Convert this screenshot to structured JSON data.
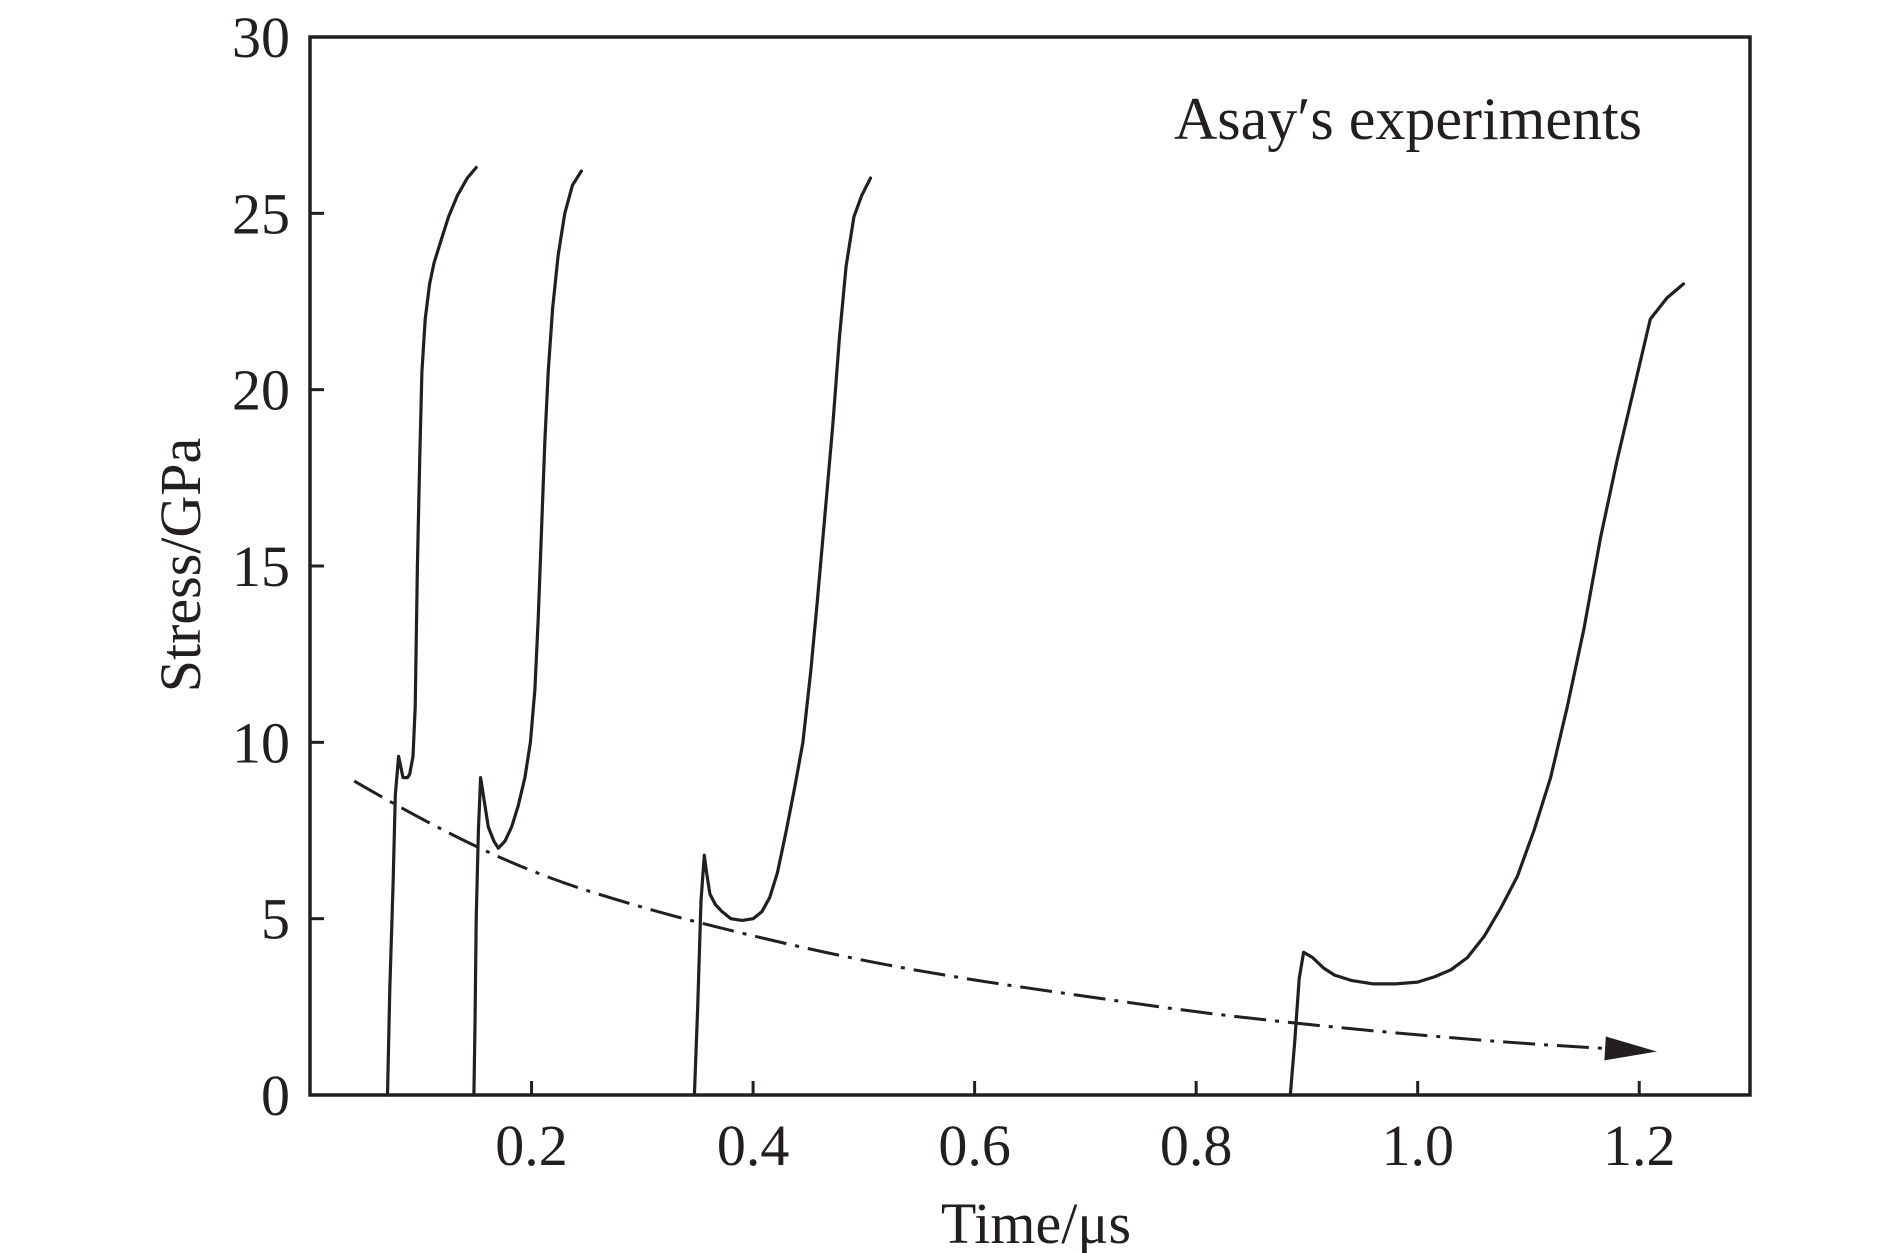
{
  "chart_data": {
    "type": "line",
    "title": "",
    "xlabel": "Time/μs",
    "ylabel": "Stress/GPa",
    "xlim": [
      0,
      1.3
    ],
    "ylim": [
      0,
      30
    ],
    "x_ticks": [
      0.2,
      0.4,
      0.6,
      0.8,
      1.0,
      1.2
    ],
    "x_tick_labels": [
      "0.2",
      "0.4",
      "0.6",
      "0.8",
      "1.0",
      "1.2"
    ],
    "y_ticks": [
      0,
      5,
      10,
      15,
      20,
      25,
      30
    ],
    "y_tick_labels": [
      "0",
      "5",
      "10",
      "15",
      "20",
      "25",
      "30"
    ],
    "grid": false,
    "annotation": "Asay′s experiments",
    "colors": {
      "line": "#231f20",
      "background": "#ffffff"
    },
    "series": [
      {
        "points": [
          [
            0.07,
            0.0
          ],
          [
            0.072,
            3.0
          ],
          [
            0.075,
            6.0
          ],
          [
            0.077,
            8.5
          ],
          [
            0.08,
            9.6
          ],
          [
            0.082,
            9.3
          ],
          [
            0.084,
            9.0
          ],
          [
            0.088,
            9.0
          ],
          [
            0.09,
            9.1
          ],
          [
            0.093,
            9.6
          ],
          [
            0.095,
            11.0
          ],
          [
            0.097,
            15.0
          ],
          [
            0.099,
            18.0
          ],
          [
            0.101,
            20.5
          ],
          [
            0.104,
            22.0
          ],
          [
            0.108,
            23.0
          ],
          [
            0.112,
            23.6
          ],
          [
            0.118,
            24.2
          ],
          [
            0.125,
            24.9
          ],
          [
            0.133,
            25.5
          ],
          [
            0.142,
            26.0
          ],
          [
            0.15,
            26.3
          ]
        ]
      },
      {
        "points": [
          [
            0.148,
            0.0
          ],
          [
            0.149,
            2.0
          ],
          [
            0.15,
            5.0
          ],
          [
            0.152,
            7.5
          ],
          [
            0.154,
            9.0
          ],
          [
            0.157,
            8.4
          ],
          [
            0.161,
            7.6
          ],
          [
            0.166,
            7.2
          ],
          [
            0.17,
            7.0
          ],
          [
            0.176,
            7.2
          ],
          [
            0.182,
            7.6
          ],
          [
            0.188,
            8.2
          ],
          [
            0.194,
            9.0
          ],
          [
            0.199,
            10.0
          ],
          [
            0.203,
            11.5
          ],
          [
            0.206,
            13.5
          ],
          [
            0.209,
            16.0
          ],
          [
            0.212,
            18.5
          ],
          [
            0.215,
            20.5
          ],
          [
            0.219,
            22.3
          ],
          [
            0.224,
            23.8
          ],
          [
            0.23,
            25.0
          ],
          [
            0.237,
            25.8
          ],
          [
            0.245,
            26.2
          ]
        ]
      },
      {
        "points": [
          [
            0.347,
            0.0
          ],
          [
            0.35,
            2.5
          ],
          [
            0.353,
            5.5
          ],
          [
            0.356,
            6.8
          ],
          [
            0.358,
            6.3
          ],
          [
            0.361,
            5.7
          ],
          [
            0.366,
            5.4
          ],
          [
            0.372,
            5.2
          ],
          [
            0.38,
            5.0
          ],
          [
            0.39,
            4.95
          ],
          [
            0.4,
            5.0
          ],
          [
            0.408,
            5.2
          ],
          [
            0.415,
            5.6
          ],
          [
            0.422,
            6.3
          ],
          [
            0.43,
            7.5
          ],
          [
            0.438,
            8.8
          ],
          [
            0.445,
            10.0
          ],
          [
            0.452,
            12.0
          ],
          [
            0.458,
            14.0
          ],
          [
            0.465,
            16.5
          ],
          [
            0.472,
            19.0
          ],
          [
            0.478,
            21.5
          ],
          [
            0.484,
            23.5
          ],
          [
            0.491,
            24.9
          ],
          [
            0.498,
            25.5
          ],
          [
            0.506,
            26.0
          ]
        ]
      },
      {
        "points": [
          [
            0.885,
            0.0
          ],
          [
            0.889,
            1.5
          ],
          [
            0.893,
            3.3
          ],
          [
            0.897,
            4.05
          ],
          [
            0.905,
            3.9
          ],
          [
            0.915,
            3.6
          ],
          [
            0.925,
            3.4
          ],
          [
            0.94,
            3.25
          ],
          [
            0.96,
            3.15
          ],
          [
            0.98,
            3.15
          ],
          [
            1.0,
            3.2
          ],
          [
            1.015,
            3.35
          ],
          [
            1.03,
            3.55
          ],
          [
            1.045,
            3.9
          ],
          [
            1.06,
            4.5
          ],
          [
            1.075,
            5.3
          ],
          [
            1.09,
            6.2
          ],
          [
            1.105,
            7.5
          ],
          [
            1.12,
            9.0
          ],
          [
            1.135,
            11.0
          ],
          [
            1.15,
            13.2
          ],
          [
            1.165,
            15.8
          ],
          [
            1.18,
            18.0
          ],
          [
            1.195,
            20.0
          ],
          [
            1.21,
            22.0
          ],
          [
            1.225,
            22.6
          ],
          [
            1.24,
            23.0
          ]
        ]
      }
    ],
    "trend": {
      "style": "dash-dot",
      "arrow": "end",
      "points": [
        [
          0.04,
          8.9
        ],
        [
          0.1,
          7.8
        ],
        [
          0.2,
          6.3
        ],
        [
          0.3,
          5.3
        ],
        [
          0.4,
          4.5
        ],
        [
          0.5,
          3.8
        ],
        [
          0.6,
          3.25
        ],
        [
          0.7,
          2.8
        ],
        [
          0.8,
          2.35
        ],
        [
          0.9,
          2.0
        ],
        [
          1.0,
          1.7
        ],
        [
          1.1,
          1.45
        ],
        [
          1.18,
          1.3
        ]
      ]
    }
  }
}
